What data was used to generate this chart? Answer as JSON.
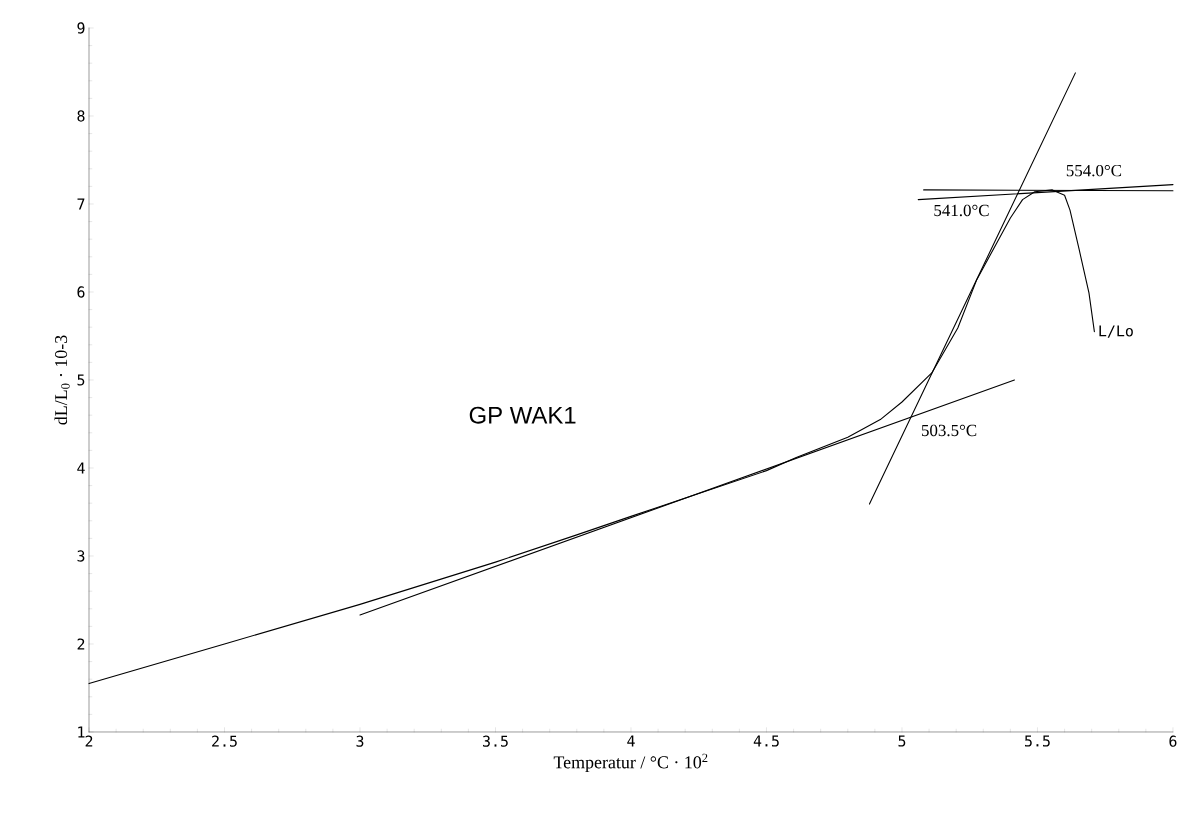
{
  "chart_data": {
    "type": "line",
    "xlabel": "Temperatur / °C · 10$^{2}$",
    "ylabel": "dL/L$_{0}$ · 10-3",
    "x": [
      2,
      2.5,
      3,
      3.5,
      3.8,
      4,
      4.5,
      4.61,
      4.8,
      4.92,
      5.0,
      5.11,
      5.206,
      5.276,
      5.4,
      5.445,
      5.49,
      5.555,
      5.6,
      5.62,
      5.654,
      5.69,
      5.71
    ],
    "series": [
      {
        "name": "L/Lo",
        "color": "#000000",
        "values": [
          1.55,
          2.0,
          2.45,
          2.93,
          3.24,
          3.45,
          3.97,
          4.12,
          4.35,
          4.55,
          4.75,
          5.08,
          5.59,
          6.14,
          6.84,
          7.05,
          7.14,
          7.16,
          7.1,
          6.93,
          6.48,
          5.99,
          5.55
        ]
      },
      {
        "color": "#000000",
        "x": [
          3.0,
          5.415
        ],
        "values": [
          2.33,
          5.0
        ]
      },
      {
        "color": "#000000",
        "x": [
          4.88,
          5.64
        ],
        "values": [
          3.59,
          8.49
        ]
      },
      {
        "color": "#000000",
        "x": [
          5.08,
          6.0
        ],
        "values": [
          7.16,
          7.15
        ]
      },
      {
        "color": "#000000",
        "x": [
          5.06,
          6.0
        ],
        "values": [
          7.05,
          7.22
        ]
      }
    ],
    "annotations": [
      "GP WAK1",
      {
        "text": "503.5°C",
        "x": 5.035,
        "y": 4.6
      },
      {
        "text": "541.0°C",
        "x": 5.41,
        "y": 7.1
      },
      {
        "text": "554.0°C",
        "x": 5.54,
        "y": 7.16
      }
    ],
    "xlim": [
      2,
      6
    ],
    "ylim": [
      1,
      9
    ],
    "xticks": [
      2,
      {
        "value": 2.5,
        "label": "2.5"
      },
      3,
      {
        "value": 3.5,
        "label": "3.5"
      },
      4,
      {
        "value": 4.5,
        "label": "4.5"
      },
      5,
      {
        "value": 5.5,
        "label": "5.5"
      },
      6
    ],
    "yticks": [
      1,
      2,
      3,
      4,
      5,
      6,
      7,
      8,
      9
    ],
    "grid": false,
    "legend": false,
    "marker": "none",
    "line_style": "solid"
  }
}
